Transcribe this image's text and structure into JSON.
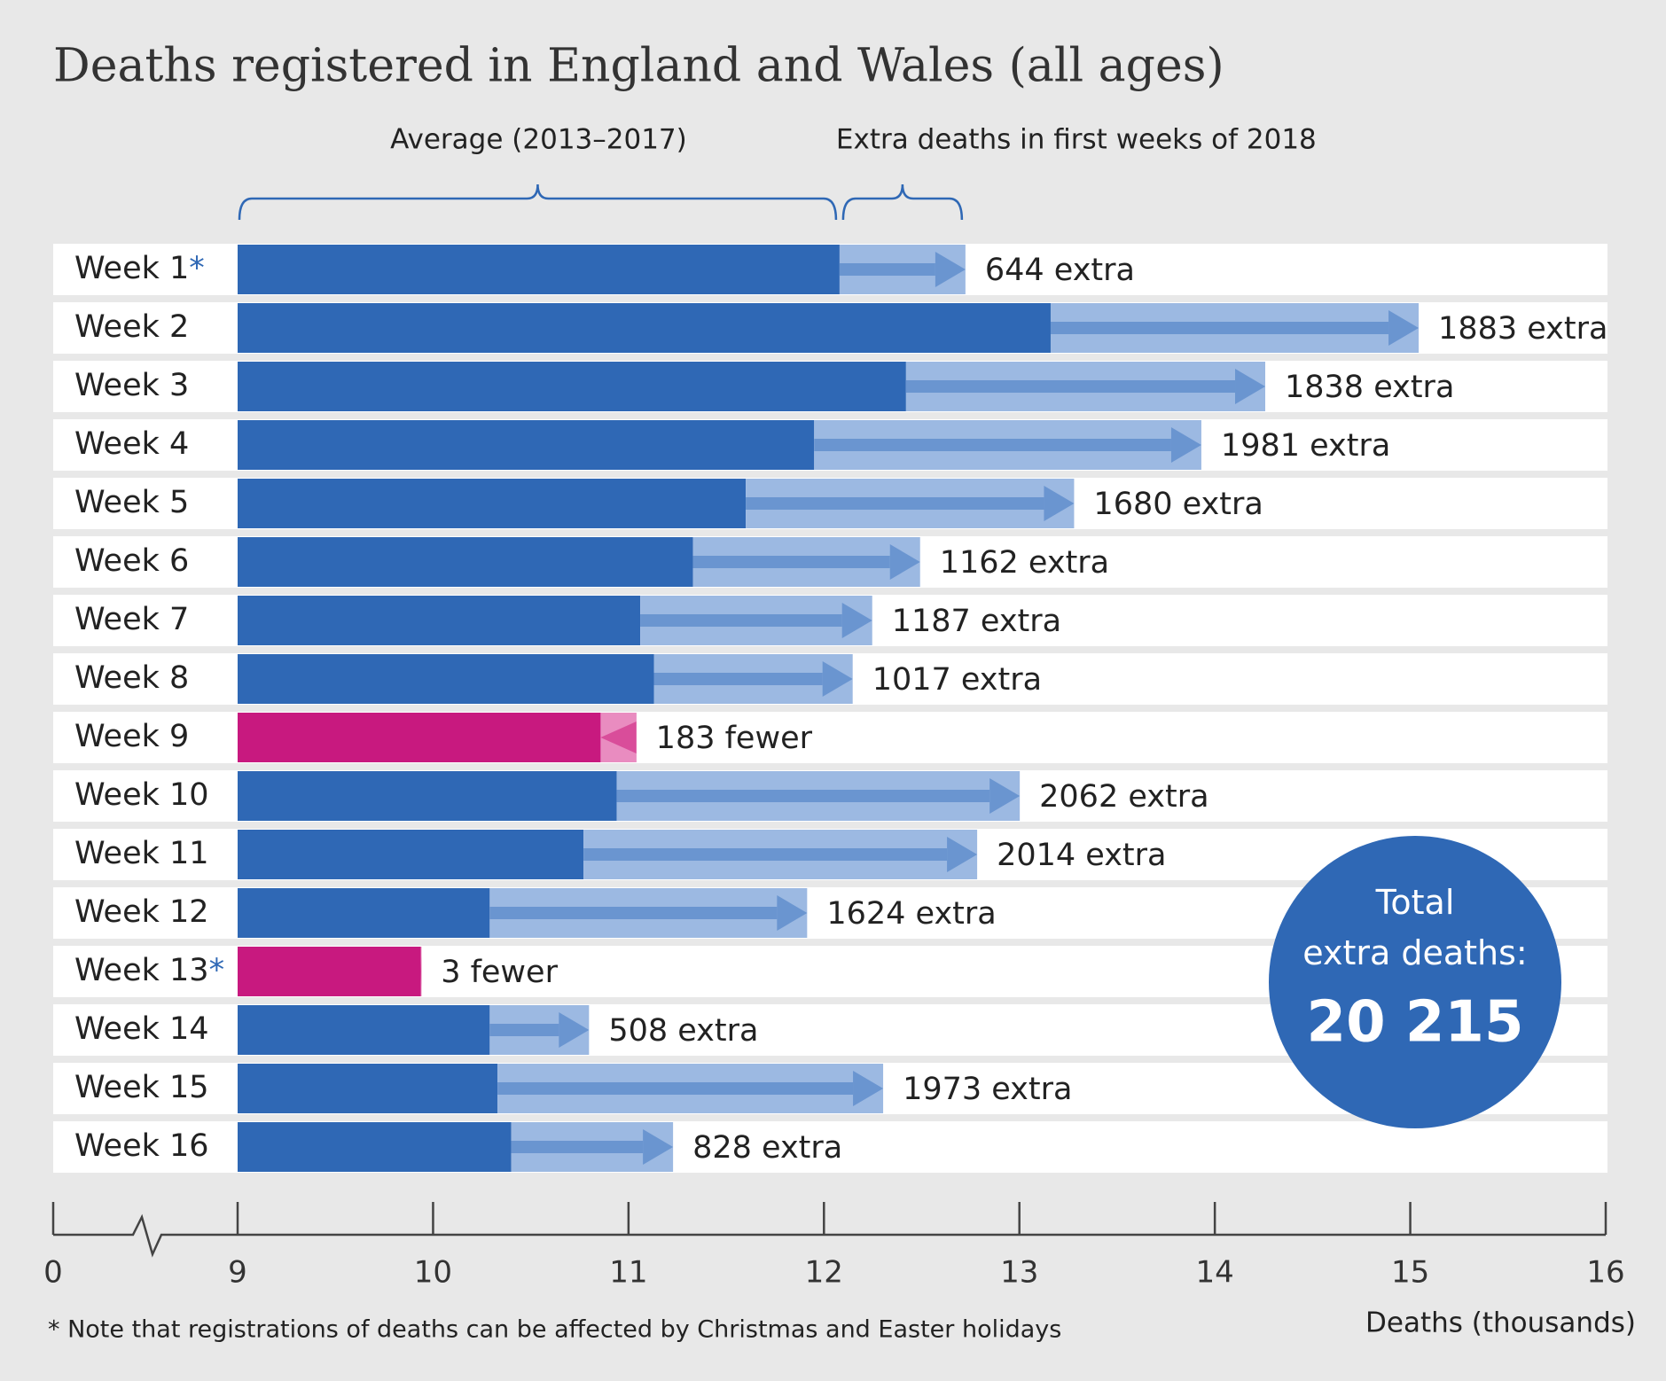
{
  "chart_data": {
    "type": "bar",
    "orientation": "horizontal",
    "title": "Deaths registered in England and Wales (all ages)",
    "categories": [
      "Week 1*",
      "Week 2",
      "Week 3",
      "Week 4",
      "Week 5",
      "Week 6",
      "Week 7",
      "Week 8",
      "Week 9",
      "Week 10",
      "Week 11",
      "Week 12",
      "Week 13*",
      "Week 14",
      "Week 15",
      "Week 16"
    ],
    "series": [
      {
        "name": "Average (2013–2017)",
        "color": "#2f68b5",
        "negative_color": "#c8197f",
        "values": [
          12.08,
          13.16,
          12.42,
          11.95,
          11.6,
          11.33,
          11.06,
          11.13,
          11.04,
          10.94,
          10.77,
          10.29,
          9.94,
          10.29,
          10.33,
          10.4
        ]
      },
      {
        "name": "Extra deaths in first weeks of 2018",
        "color": "#9cb9e2",
        "arrow_color": "#6a95d0",
        "negative_color": "#e98cc0",
        "negative_arrow_color": "#d94d9a",
        "values": [
          0.644,
          1.883,
          1.838,
          1.981,
          1.68,
          1.162,
          1.187,
          1.017,
          -0.183,
          2.062,
          2.014,
          1.624,
          -0.003,
          0.508,
          1.973,
          0.828
        ],
        "value_labels": [
          "644 extra",
          "1883 extra",
          "1838 extra",
          "1981 extra",
          "1680 extra",
          "1162 extra",
          "1187 extra",
          "1017 extra",
          "183 fewer",
          "2062 extra",
          "2014 extra",
          "1624 extra",
          "3 fewer",
          "508 extra",
          "1973 extra",
          "828 extra"
        ]
      }
    ],
    "xlim": [
      9,
      16
    ],
    "xticks": [
      0,
      9,
      10,
      11,
      12,
      13,
      14,
      15,
      16
    ],
    "axis_break": true,
    "xlabel": "Deaths (thousands)",
    "annotation": {
      "text": "Total extra deaths:",
      "value": "20 215",
      "color": "#2f68b5"
    },
    "note": "* Note that registrations of deaths can be affected by Christmas and Easter holidays"
  }
}
